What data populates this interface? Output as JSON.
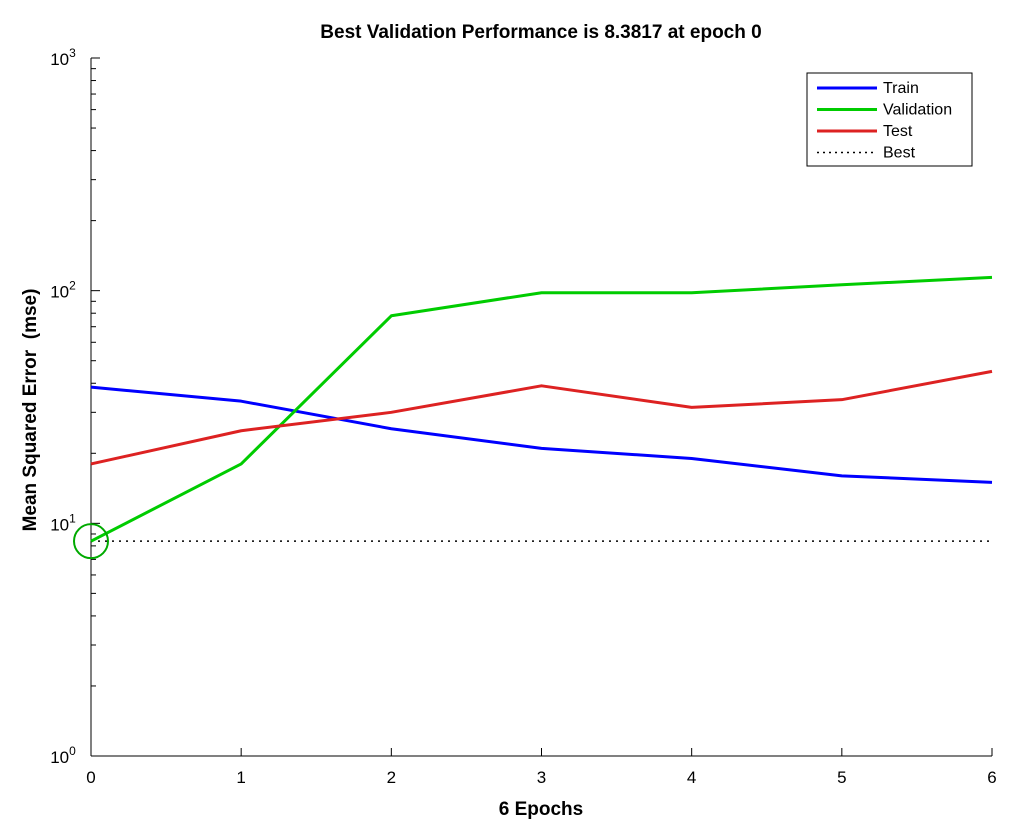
{
  "chart_data": {
    "type": "line",
    "title": "Best Validation Performance is 8.3817 at epoch 0",
    "xlabel": "6 Epochs",
    "ylabel": "Mean Squared Error  (mse)",
    "yscale": "log",
    "xlim": [
      0,
      6
    ],
    "ylim": [
      1,
      1000
    ],
    "x_ticks": [
      "0",
      "1",
      "2",
      "3",
      "4",
      "5",
      "6"
    ],
    "y_ticks": [
      {
        "base": "10",
        "exp": "0",
        "value": 1
      },
      {
        "base": "10",
        "exp": "1",
        "value": 10
      },
      {
        "base": "10",
        "exp": "2",
        "value": 100
      },
      {
        "base": "10",
        "exp": "3",
        "value": 1000
      }
    ],
    "x": [
      0,
      1,
      2,
      3,
      4,
      5,
      6
    ],
    "series": [
      {
        "name": "Train",
        "color": "#0000ff",
        "values": [
          38.5,
          33.5,
          25.5,
          21,
          19,
          16,
          15
        ]
      },
      {
        "name": "Validation",
        "color": "#00cc00",
        "values": [
          8.3817,
          18,
          78,
          98,
          98,
          106,
          114
        ]
      },
      {
        "name": "Test",
        "color": "#dd2222",
        "values": [
          18,
          25,
          30,
          39,
          31.5,
          34,
          45
        ]
      }
    ],
    "best": {
      "name": "Best",
      "value": 8.3817,
      "epoch": 0,
      "style": "dotted",
      "color": "#000000",
      "marker_color": "#00aa00"
    },
    "legend_position": "top-right",
    "grid": false
  }
}
